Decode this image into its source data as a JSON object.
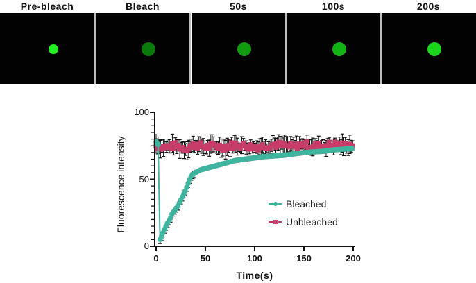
{
  "panels": [
    {
      "label": "Pre-bleach",
      "dot_color": "#22ee22"
    },
    {
      "label": "Bleach",
      "dot_color": "#0a7a0a"
    },
    {
      "label": "50s",
      "dot_color": "#119c11"
    },
    {
      "label": "100s",
      "dot_color": "#14b314"
    },
    {
      "label": "200s",
      "dot_color": "#1ad61a"
    }
  ],
  "chart_data": {
    "type": "line",
    "xlabel": "Time(s)",
    "ylabel": "Fluorescence intensity",
    "xlim": [
      0,
      200
    ],
    "ylim": [
      0,
      100
    ],
    "xticks": [
      "0",
      "50",
      "100",
      "150",
      "200"
    ],
    "yticks": [
      "0",
      "50",
      "100"
    ],
    "legend_position": "center-right",
    "series": [
      {
        "name": "Bleached",
        "color": "#3fb59f",
        "marker": "circle",
        "x": [
          0,
          2,
          4,
          6,
          8,
          10,
          12,
          14,
          16,
          18,
          20,
          22,
          24,
          26,
          28,
          30,
          32,
          34,
          36,
          40,
          45,
          50,
          60,
          70,
          80,
          90,
          100,
          110,
          120,
          130,
          140,
          150,
          160,
          170,
          180,
          190,
          200
        ],
        "y": [
          78,
          76,
          5,
          8,
          12,
          15,
          18,
          20,
          24,
          26,
          28,
          30,
          33,
          36,
          39,
          42,
          46,
          50,
          53,
          55,
          57,
          58,
          60,
          62,
          64,
          65,
          66,
          67,
          67.5,
          68,
          69,
          70,
          70.5,
          71,
          72,
          72.5,
          73
        ]
      },
      {
        "name": "Unbleached",
        "color": "#c83c6a",
        "marker": "square",
        "x": [
          0,
          10,
          20,
          30,
          40,
          50,
          60,
          70,
          80,
          90,
          100,
          110,
          120,
          130,
          140,
          150,
          160,
          170,
          180,
          190,
          200
        ],
        "y": [
          75,
          74,
          75,
          73,
          76,
          74,
          75,
          74,
          76,
          75,
          74,
          75,
          76,
          75,
          74,
          76,
          75,
          75,
          76,
          75,
          76
        ]
      }
    ]
  }
}
